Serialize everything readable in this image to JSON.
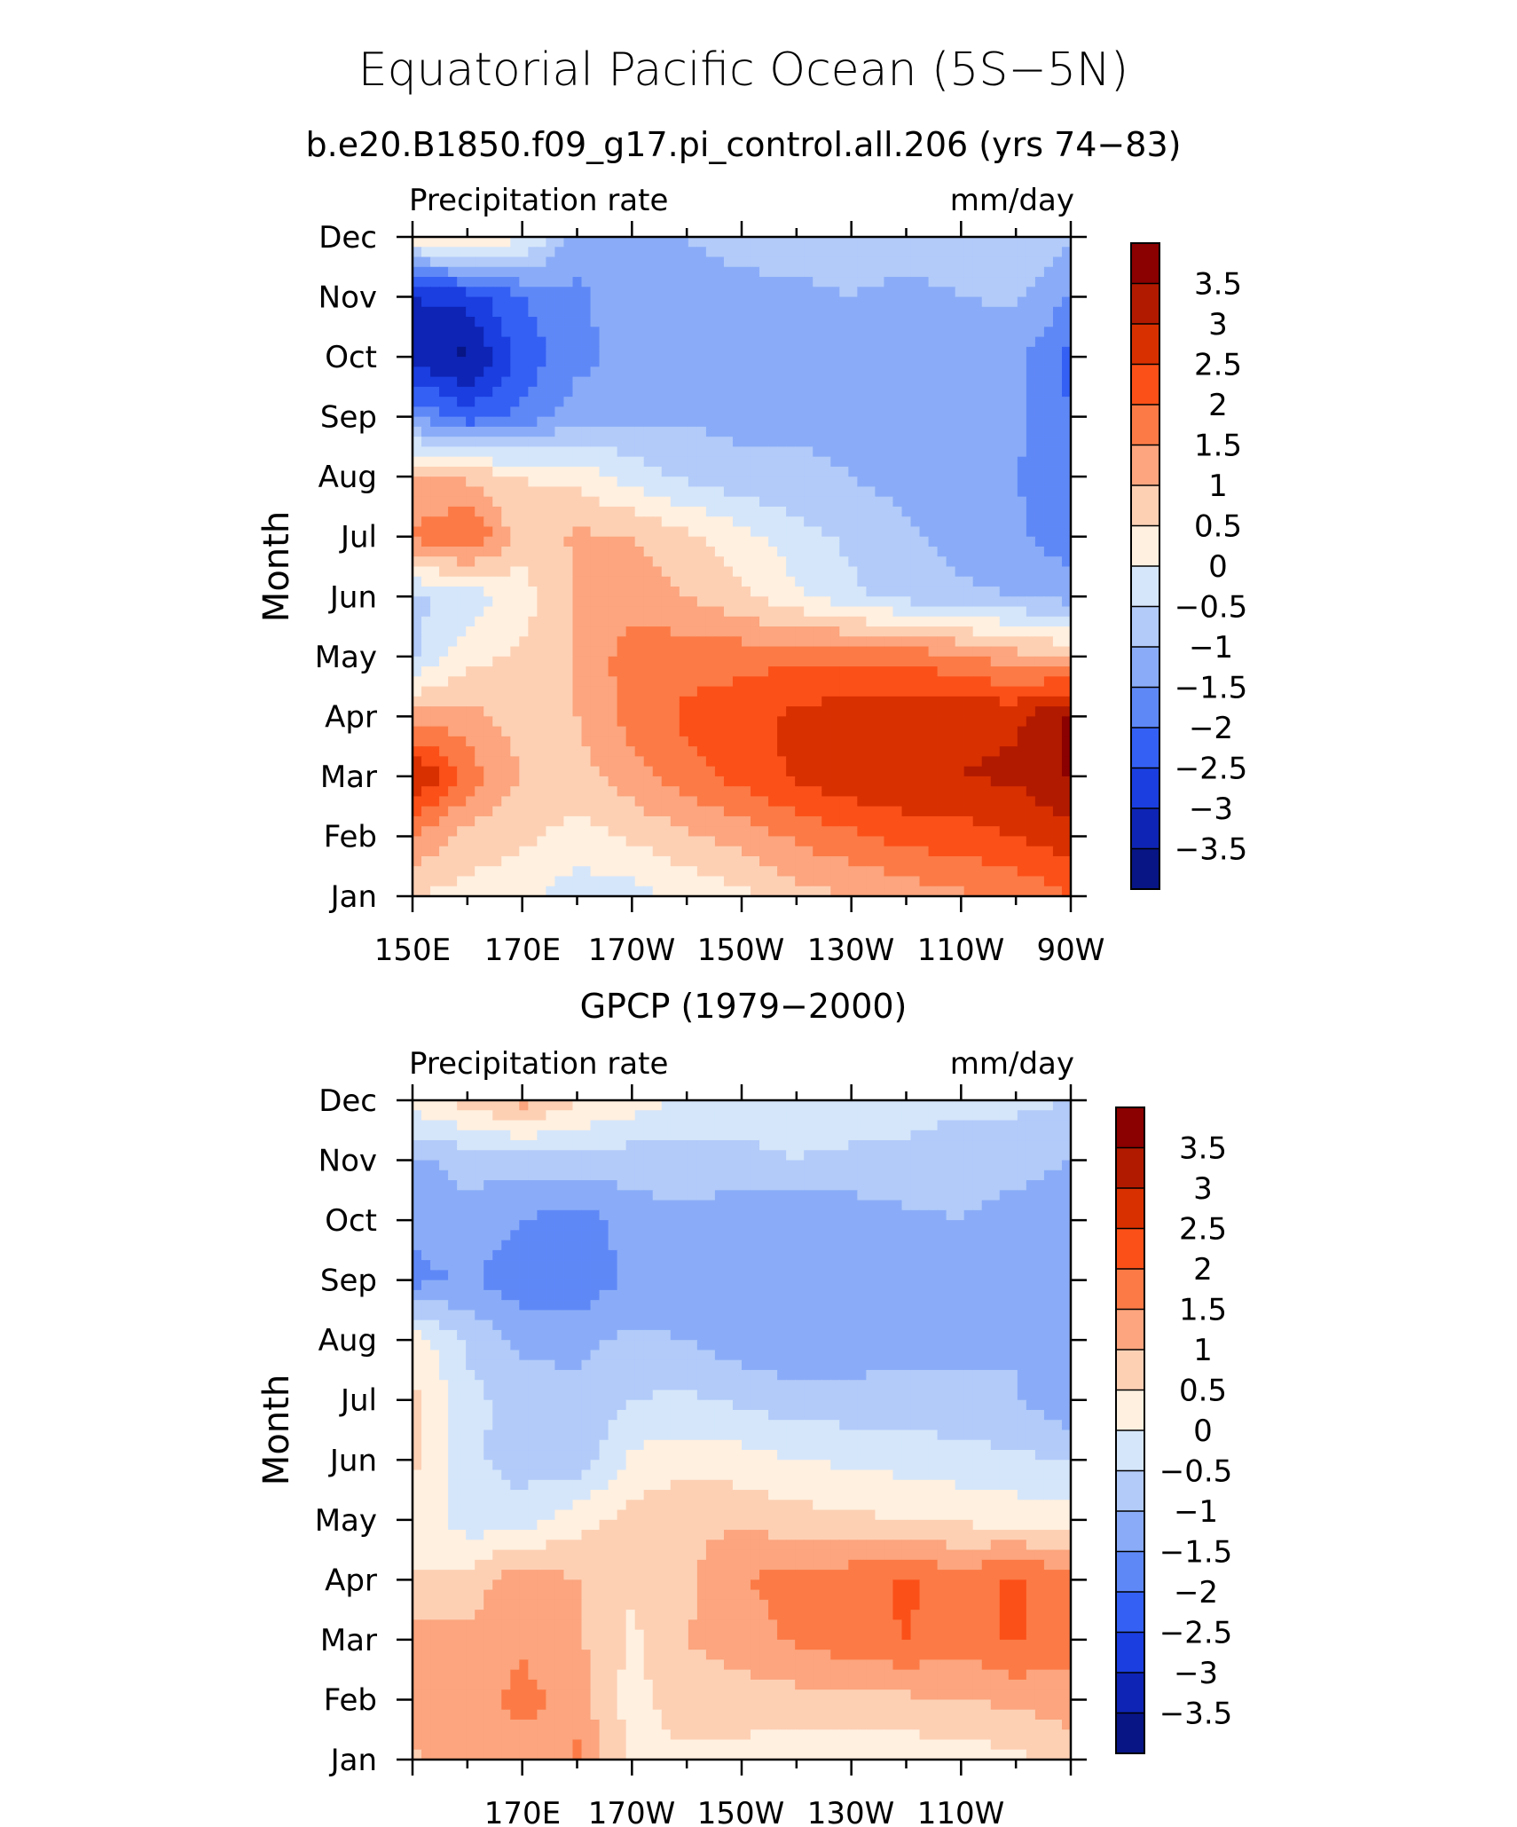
{
  "figure": {
    "title": "Equatorial Pacific Ocean (5S−5N)",
    "subtitle": "b.e20.B1850.f09_g17.pi_control.all.206 (yrs 74−83)"
  },
  "colorbar": {
    "levels": [
      3.5,
      3,
      2.5,
      2,
      1.5,
      1,
      0.5,
      0,
      -0.5,
      -1,
      -1.5,
      -2,
      -2.5,
      -3,
      -3.5
    ],
    "labels": [
      "3.5",
      "3",
      "2.5",
      "2",
      "1.5",
      "1",
      "0.5",
      "0",
      "−0.5",
      "−1",
      "−1.5",
      "−2",
      "−2.5",
      "−3",
      "−3.5"
    ],
    "colors": [
      "#8b0000",
      "#b21a00",
      "#d93000",
      "#fb5018",
      "#fc7a46",
      "#fca57e",
      "#fdd0b4",
      "#fff0e0",
      "#d5e6fa",
      "#b2cbf9",
      "#8aacf8",
      "#5f88f7",
      "#3460f4",
      "#1a3ee0",
      "#0e24b4",
      "#071585"
    ]
  },
  "chart_data": [
    {
      "type": "heatmap",
      "title": "b.e20.B1850.f09_g17.pi_control.all.206 (yrs 74−83)",
      "left_label": "Precipitation rate",
      "right_label": "mm/day",
      "ylabel": "Month",
      "x_tick_labels": [
        "150E",
        "170E",
        "170W",
        "150W",
        "130W",
        "110W",
        "90W"
      ],
      "y_tick_labels": [
        "Jan",
        "Feb",
        "Mar",
        "Apr",
        "May",
        "Jun",
        "Jul",
        "Aug",
        "Sep",
        "Oct",
        "Nov",
        "Dec"
      ],
      "x": [
        150,
        160,
        170,
        180,
        190,
        200,
        210,
        220,
        230,
        240,
        250,
        260,
        270
      ],
      "y": [
        "Jan",
        "Feb",
        "Mar",
        "Apr",
        "May",
        "Jun",
        "Jul",
        "Aug",
        "Sep",
        "Oct",
        "Nov",
        "Dec"
      ],
      "z": [
        [
          0.5,
          0.3,
          0.2,
          -0.3,
          -0.2,
          0.1,
          0.4,
          0.8,
          1.0,
          1.2,
          1.4,
          1.6,
          2.0
        ],
        [
          1.5,
          0.8,
          0.6,
          0.3,
          0.6,
          0.9,
          1.2,
          1.6,
          1.9,
          2.2,
          2.3,
          2.5,
          2.8
        ],
        [
          3.2,
          1.8,
          1.0,
          0.8,
          1.3,
          1.8,
          2.2,
          2.6,
          2.9,
          3.0,
          3.0,
          3.1,
          3.6
        ],
        [
          1.2,
          1.2,
          0.7,
          1.0,
          1.7,
          2.1,
          2.3,
          2.6,
          2.8,
          2.9,
          2.9,
          2.9,
          3.6
        ],
        [
          -0.6,
          0.3,
          0.6,
          1.0,
          1.8,
          1.8,
          1.8,
          1.9,
          1.9,
          1.8,
          1.6,
          1.2,
          1.0
        ],
        [
          -0.6,
          -0.4,
          0.3,
          1.0,
          1.3,
          1.0,
          0.6,
          0.1,
          -0.4,
          -0.7,
          -0.9,
          -1.0,
          -1.2
        ],
        [
          1.6,
          2.1,
          0.7,
          1.1,
          1.0,
          0.6,
          0.2,
          -0.3,
          -0.6,
          -0.9,
          -1.2,
          -1.4,
          -1.8
        ],
        [
          1.0,
          0.9,
          0.5,
          0.3,
          -0.2,
          -0.6,
          -0.9,
          -0.9,
          -1.0,
          -1.2,
          -1.4,
          -1.5,
          -1.7
        ],
        [
          -1.5,
          -2.3,
          -1.9,
          -1.2,
          -1.1,
          -1.1,
          -1.1,
          -1.1,
          -1.1,
          -1.2,
          -1.3,
          -1.4,
          -2.0
        ],
        [
          -3.3,
          -3.6,
          -2.3,
          -1.7,
          -1.2,
          -1.1,
          -1.2,
          -1.3,
          -1.4,
          -1.5,
          -1.5,
          -1.3,
          -2.2
        ],
        [
          -3.0,
          -2.8,
          -2.0,
          -1.6,
          -1.2,
          -1.1,
          -1.1,
          -1.1,
          -1.0,
          -1.1,
          -1.0,
          -0.9,
          -1.5
        ],
        [
          0.3,
          0.5,
          0.1,
          -1.2,
          -1.1,
          -1.0,
          -0.9,
          -0.8,
          -0.8,
          -0.8,
          -0.8,
          -0.6,
          -0.9
        ]
      ],
      "zlim": [
        -4,
        4
      ]
    },
    {
      "type": "heatmap",
      "title": "GPCP (1979−2000)",
      "left_label": "Precipitation rate",
      "right_label": "mm/day",
      "ylabel": "Month",
      "x_tick_labels": [
        "170E",
        "170W",
        "150W",
        "130W",
        "110W"
      ],
      "y_tick_labels": [
        "Jan",
        "Feb",
        "Mar",
        "Apr",
        "May",
        "Jun",
        "Jul",
        "Aug",
        "Sep",
        "Oct",
        "Nov",
        "Dec"
      ],
      "x": [
        150,
        160,
        170,
        180,
        190,
        200,
        210,
        220,
        230,
        240,
        250,
        260,
        270
      ],
      "y": [
        "Jan",
        "Feb",
        "Mar",
        "Apr",
        "May",
        "Jun",
        "Jul",
        "Aug",
        "Sep",
        "Oct",
        "Nov",
        "Dec"
      ],
      "z": [
        [
          0.9,
          1.3,
          1.1,
          1.6,
          0.3,
          0.4,
          0.3,
          0.2,
          0.2,
          0.2,
          0.2,
          0.4,
          0.8
        ],
        [
          1.3,
          1.2,
          1.7,
          1.2,
          0.3,
          0.8,
          0.8,
          0.8,
          0.8,
          0.9,
          1.0,
          1.1,
          1.2
        ],
        [
          1.2,
          1.1,
          1.4,
          1.1,
          0.4,
          1.0,
          1.2,
          1.6,
          1.8,
          2.0,
          1.7,
          2.1,
          1.7
        ],
        [
          0.5,
          0.7,
          1.4,
          1.0,
          0.6,
          0.9,
          1.5,
          1.7,
          1.8,
          2.1,
          1.7,
          2.1,
          1.7
        ],
        [
          0.5,
          -0.3,
          -0.3,
          0.3,
          0.7,
          0.9,
          0.9,
          0.7,
          0.6,
          0.5,
          0.4,
          0.3,
          0.2
        ],
        [
          0.6,
          -0.4,
          -0.7,
          -0.8,
          0.1,
          0.3,
          0.2,
          0.0,
          -0.1,
          -0.2,
          -0.3,
          -0.4,
          -0.5
        ],
        [
          0.6,
          -0.3,
          -0.8,
          -0.9,
          -0.5,
          -0.4,
          -0.6,
          -0.8,
          -0.8,
          -0.8,
          -0.9,
          -1.0,
          -1.4
        ],
        [
          0.3,
          -0.6,
          -1.1,
          -1.1,
          -0.9,
          -1.0,
          -1.3,
          -1.4,
          -1.3,
          -1.2,
          -1.1,
          -1.0,
          -1.1
        ],
        [
          -1.7,
          -1.4,
          -1.9,
          -1.9,
          -1.4,
          -1.2,
          -1.5,
          -1.4,
          -1.4,
          -1.3,
          -1.2,
          -1.2,
          -1.4
        ],
        [
          -1.3,
          -1.2,
          -1.5,
          -1.8,
          -1.2,
          -1.1,
          -1.4,
          -1.4,
          -1.3,
          -1.1,
          -1.0,
          -1.2,
          -1.4
        ],
        [
          -1.1,
          -0.8,
          -0.8,
          -0.6,
          -0.8,
          -0.7,
          -0.6,
          -0.5,
          -0.6,
          -0.7,
          -0.8,
          -0.8,
          -1.0
        ],
        [
          0.3,
          0.7,
          1.2,
          0.5,
          0.3,
          -0.2,
          -0.3,
          -0.3,
          -0.2,
          -0.2,
          -0.4,
          -0.4,
          -0.5
        ]
      ],
      "zlim": [
        -4,
        4
      ]
    }
  ]
}
